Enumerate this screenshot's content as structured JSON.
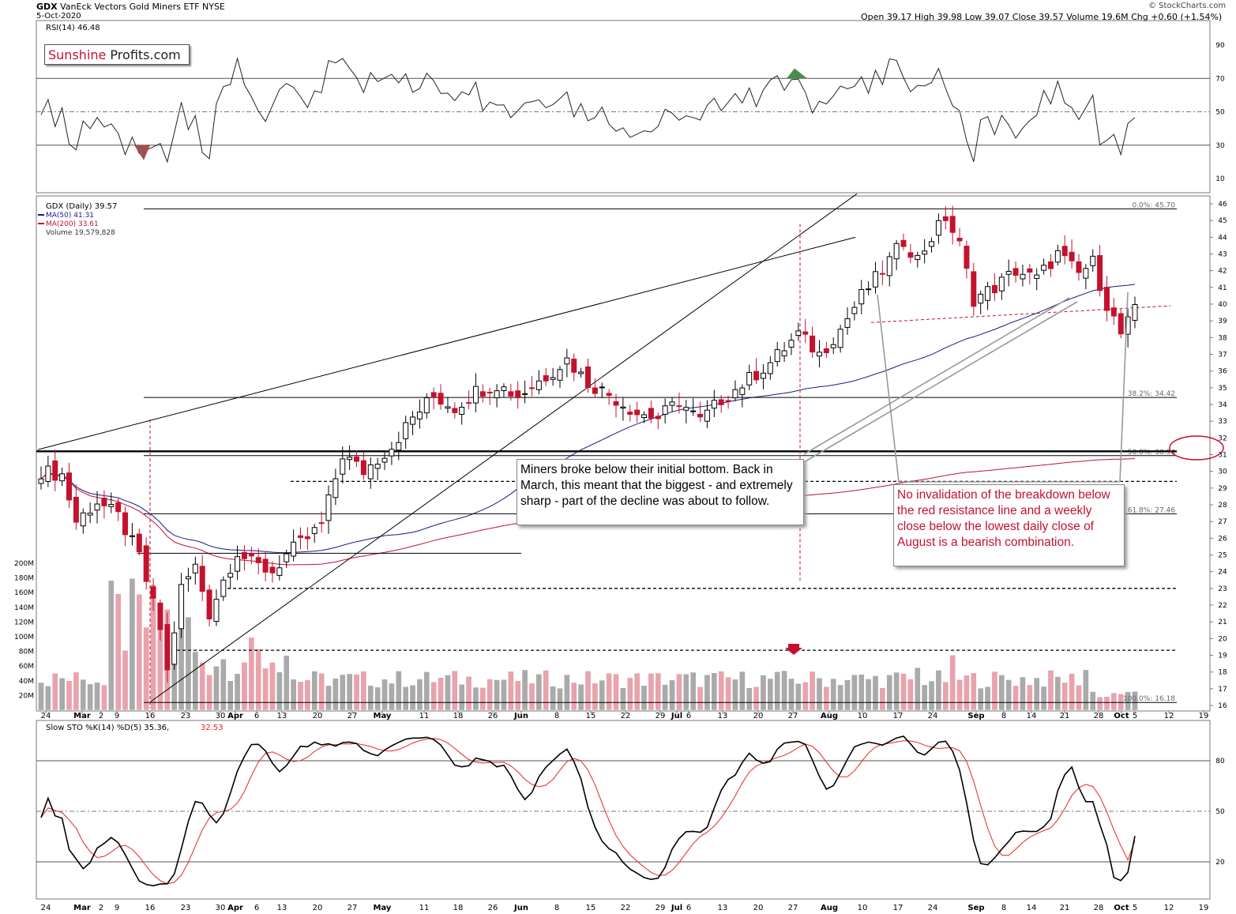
{
  "header": {
    "symbol": "GDX",
    "name": "VanEck Vectors Gold Miners ETF",
    "exchange": "NYSE",
    "date": "5-Oct-2020",
    "ohlc": "Open 39.17  High 39.98  Low 39.07  Close 39.57  Volume 19.6M  Chg +0.60 (+1.54%)",
    "attribution": "© StockCharts.com"
  },
  "logo": {
    "part1": "Sunshine",
    "part2": " Profits.com"
  },
  "legend": {
    "rsi": "RSI(14) 46.48",
    "price": "GDX (Daily) 39.57",
    "ma50": "MA(50) 41.31",
    "ma200": "MA(200) 33.61",
    "volume": "Volume 19,579,828",
    "sto_label": "Slow STO %K(14) %D(5) 35.36,",
    "sto_d": "32.53"
  },
  "annotations": {
    "note1": "Miners broke below their initial bottom. Back in March, this meant that the biggest - and extremely sharp -  part of the decline was about to follow.",
    "note2": "No invalidation of the breakdown below the red resistance line and a weekly close below the lowest daily close of August is a bearish combination."
  },
  "colors": {
    "up": "#ffffff",
    "down": "#c3122f",
    "black_candle": "#000000",
    "ma50": "#1a1a8c",
    "ma200": "#c3122f",
    "vol_down": "#e8a3ad",
    "vol_up": "#aaaaaa",
    "rsi_green": "#4a8c4a",
    "rsi_red": "#a05050"
  },
  "chart_data": {
    "type": "candlestick",
    "x_ticks": [
      "24",
      "Mar",
      "2",
      "9",
      "16",
      "23",
      "30",
      "Apr",
      "6",
      "13",
      "20",
      "27",
      "May",
      "11",
      "18",
      "26",
      "Jun",
      "8",
      "15",
      "22",
      "29",
      "Jul",
      "6",
      "13",
      "20",
      "27",
      "Aug",
      "10",
      "17",
      "24",
      "Sep",
      "8",
      "14",
      "21",
      "28",
      "Oct",
      "5",
      "12",
      "19"
    ],
    "price_axis": {
      "ticks": [
        16,
        17,
        18,
        19,
        20,
        21,
        22,
        23,
        24,
        25,
        26,
        27,
        28,
        29,
        30,
        31,
        32,
        33,
        34,
        35,
        36,
        37,
        38,
        39,
        40,
        41,
        42,
        43,
        44,
        45,
        46
      ]
    },
    "rsi_axis": {
      "ticks": [
        10,
        30,
        50,
        70,
        90
      ]
    },
    "sto_axis": {
      "ticks": [
        20,
        50,
        80
      ]
    },
    "volume_axis": {
      "ticks": [
        "20M",
        "40M",
        "60M",
        "80M",
        "100M",
        "120M",
        "140M",
        "160M",
        "180M",
        "200M"
      ]
    },
    "fib_labels": [
      "0.0%: 45.70",
      "38.2%: 34.42",
      "50.0%: 30.94",
      "61.8%: 27.46",
      "100.0%: 16.18"
    ],
    "fib_levels": [
      45.7,
      34.42,
      30.94,
      27.46,
      16.18
    ],
    "horizontal_support": 31.2,
    "dashed_supports": [
      29.4,
      23.0,
      19.3
    ],
    "ma50_last": 41.31,
    "ma200_last": 33.61,
    "last_close": 39.57,
    "rsi_last": 46.48,
    "sto_k_last": 35.36,
    "sto_d_last": 32.53
  }
}
